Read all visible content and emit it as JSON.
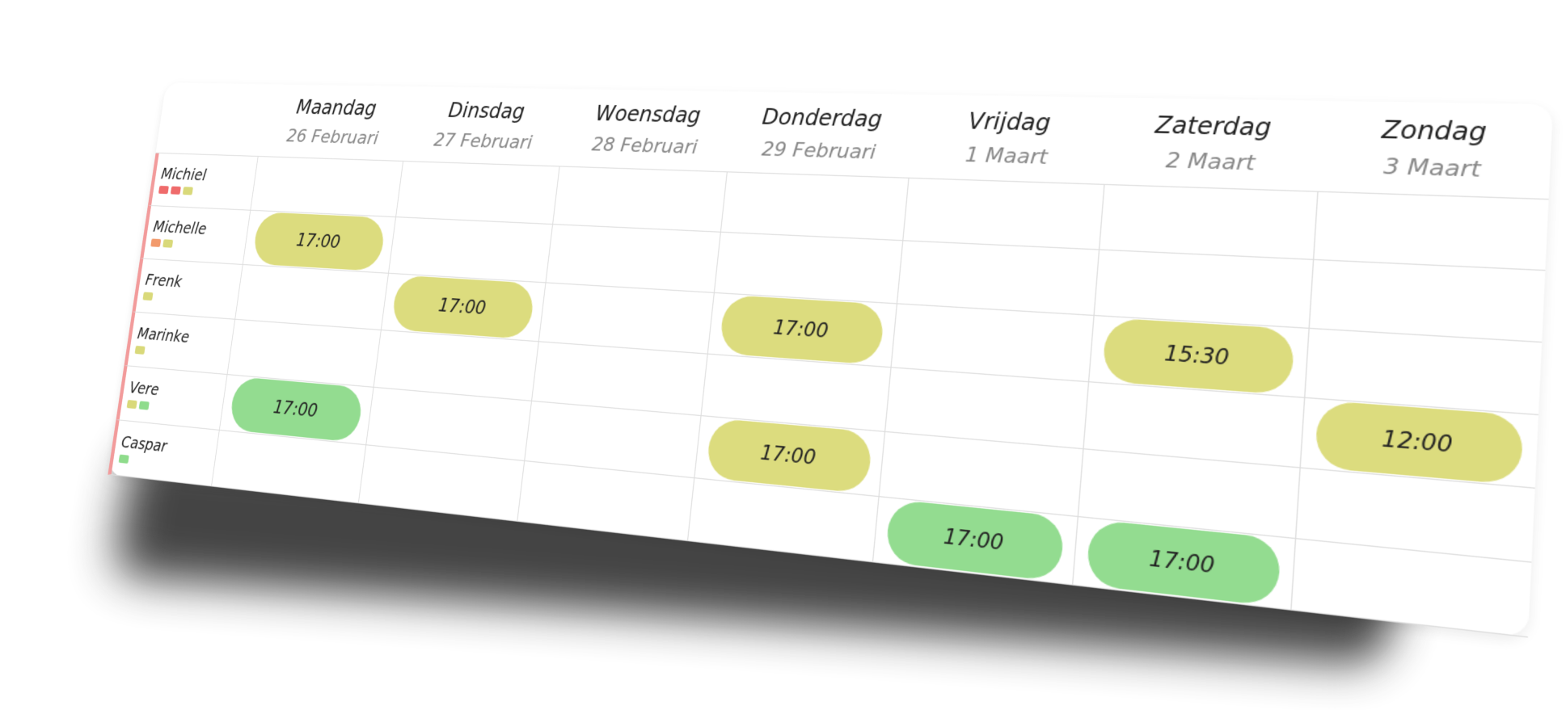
{
  "schedule": {
    "days": [
      {
        "name": "Maandag",
        "date": "26 Februari"
      },
      {
        "name": "Dinsdag",
        "date": "27 Februari"
      },
      {
        "name": "Woensdag",
        "date": "28 Februari"
      },
      {
        "name": "Donderdag",
        "date": "29 Februari"
      },
      {
        "name": "Vrijdag",
        "date": "1 Maart"
      },
      {
        "name": "Zaterdag",
        "date": "2 Maart"
      },
      {
        "name": "Zondag",
        "date": "3 Maart"
      }
    ],
    "rows": [
      {
        "name": "Michiel",
        "tags": [
          "#ef6b6b",
          "#ef6b6b",
          "#d9d97a"
        ],
        "cells": [
          null,
          null,
          null,
          null,
          null,
          null,
          null
        ]
      },
      {
        "name": "Michelle",
        "tags": [
          "#f29a6c",
          "#d9d97a"
        ],
        "cells": [
          {
            "time": "17:00",
            "color": "#dcdc7e"
          },
          null,
          null,
          null,
          null,
          null,
          null
        ]
      },
      {
        "name": "Frenk",
        "tags": [
          "#d9d97a"
        ],
        "cells": [
          null,
          {
            "time": "17:00",
            "color": "#dcdc7e"
          },
          null,
          {
            "time": "17:00",
            "color": "#dcdc7e"
          },
          null,
          {
            "time": "15:30",
            "color": "#dcdc7e"
          },
          null
        ]
      },
      {
        "name": "Marinke",
        "tags": [
          "#d9d97a"
        ],
        "cells": [
          null,
          null,
          null,
          null,
          null,
          null,
          {
            "time": "12:00",
            "color": "#dcdc7e"
          }
        ]
      },
      {
        "name": "Vere",
        "tags": [
          "#d9d97a",
          "#8fdc8c"
        ],
        "cells": [
          {
            "time": "17:00",
            "color": "#93dc90"
          },
          null,
          null,
          {
            "time": "17:00",
            "color": "#dcdc7e"
          },
          null,
          null,
          null
        ]
      },
      {
        "name": "Caspar",
        "tags": [
          "#8fdc8c"
        ],
        "cells": [
          null,
          null,
          null,
          null,
          {
            "time": "17:00",
            "color": "#93dc90"
          },
          {
            "time": "17:00",
            "color": "#93dc90"
          },
          null
        ]
      }
    ],
    "row_bar_color": "#f29b9b"
  }
}
